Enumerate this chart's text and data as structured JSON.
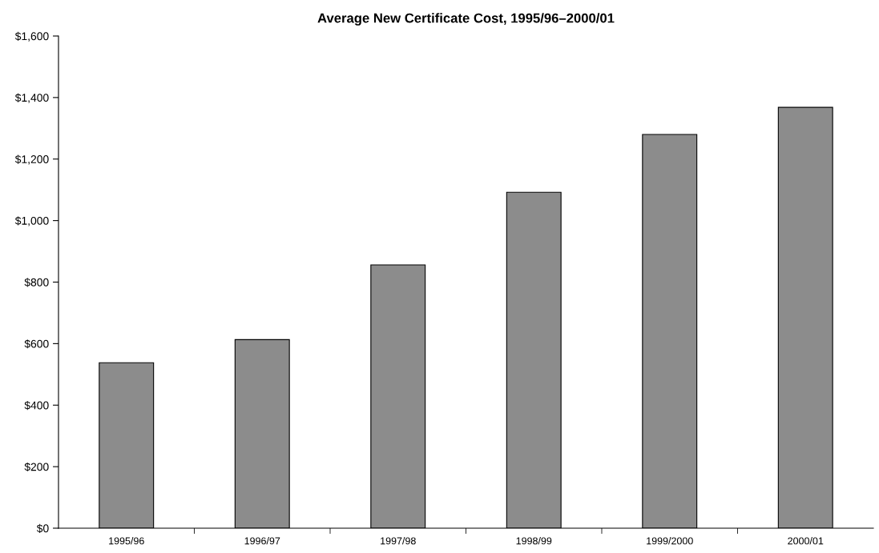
{
  "chart_data": {
    "type": "bar",
    "title": "Average New Certificate Cost, 1995/96–2000/01",
    "categories": [
      "1995/96",
      "1996/97",
      "1997/98",
      "1998/99",
      "1999/2000",
      "2000/01"
    ],
    "values": [
      538,
      613,
      856,
      1092,
      1280,
      1368
    ],
    "color": "#8c8c8c",
    "ylim": [
      0,
      1600
    ],
    "yticks": [
      {
        "value": 0,
        "label": "$0"
      },
      {
        "value": 200,
        "label": "$200"
      },
      {
        "value": 400,
        "label": "$400"
      },
      {
        "value": 600,
        "label": "$600"
      },
      {
        "value": 800,
        "label": "$800"
      },
      {
        "value": 1000,
        "label": "$1,000"
      },
      {
        "value": 1200,
        "label": "$1,200"
      },
      {
        "value": 1400,
        "label": "$1,400"
      },
      {
        "value": 1600,
        "label": "$1,600"
      }
    ],
    "grid": false,
    "legend": false
  }
}
